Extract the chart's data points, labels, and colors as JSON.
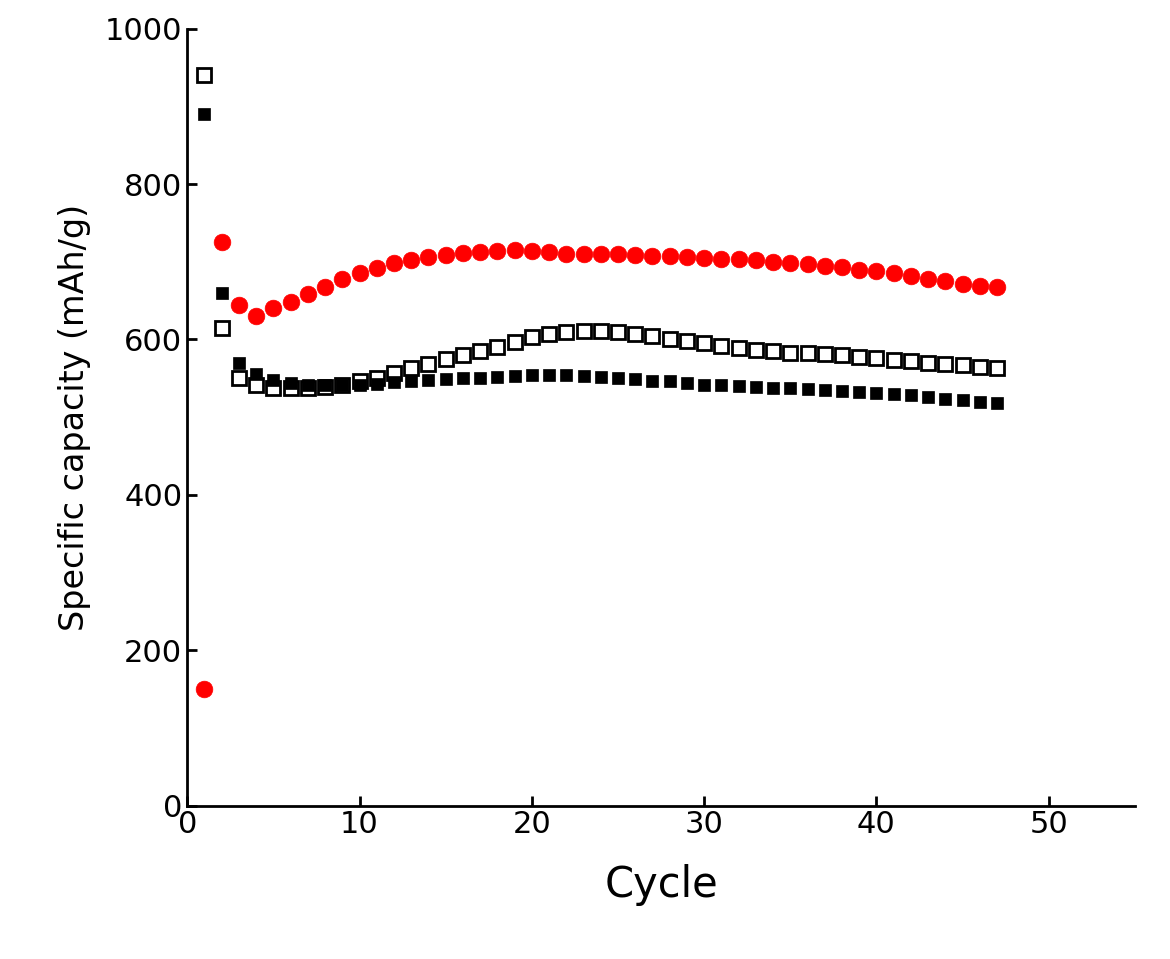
{
  "title": "",
  "xlabel": "Cycle",
  "ylabel": "Specific capacity (mAh/g)",
  "xlim": [
    0,
    55
  ],
  "ylim": [
    0,
    1000
  ],
  "xticks": [
    0,
    10,
    20,
    30,
    40,
    50
  ],
  "yticks": [
    0,
    200,
    400,
    600,
    800,
    1000
  ],
  "background_color": "#ffffff",
  "series": {
    "red_circles": {
      "x": [
        1,
        2,
        3,
        4,
        5,
        6,
        7,
        8,
        9,
        10,
        11,
        12,
        13,
        14,
        15,
        16,
        17,
        18,
        19,
        20,
        21,
        22,
        23,
        24,
        25,
        26,
        27,
        28,
        29,
        30,
        31,
        32,
        33,
        34,
        35,
        36,
        37,
        38,
        39,
        40,
        41,
        42,
        43,
        44,
        45,
        46,
        47
      ],
      "y": [
        150,
        725,
        645,
        630,
        640,
        648,
        658,
        668,
        678,
        686,
        692,
        698,
        702,
        706,
        709,
        711,
        713,
        714,
        715,
        714,
        712,
        710,
        710,
        710,
        710,
        709,
        708,
        707,
        706,
        705,
        704,
        703,
        702,
        700,
        699,
        697,
        695,
        693,
        690,
        688,
        685,
        682,
        678,
        675,
        672,
        669,
        667
      ],
      "color": "#ff0000",
      "marker": "o",
      "fillstyle": "full",
      "markersize": 12
    },
    "black_open_squares": {
      "x": [
        1,
        2,
        3,
        4,
        5,
        6,
        7,
        8,
        9,
        10,
        11,
        12,
        13,
        14,
        15,
        16,
        17,
        18,
        19,
        20,
        21,
        22,
        23,
        24,
        25,
        26,
        27,
        28,
        29,
        30,
        31,
        32,
        33,
        34,
        35,
        36,
        37,
        38,
        39,
        40,
        41,
        42,
        43,
        44,
        45,
        46,
        47
      ],
      "y": [
        940,
        615,
        550,
        542,
        538,
        537,
        537,
        539,
        542,
        546,
        551,
        557,
        563,
        569,
        575,
        580,
        585,
        590,
        597,
        603,
        607,
        610,
        611,
        611,
        609,
        607,
        604,
        601,
        598,
        595,
        592,
        589,
        587,
        585,
        583,
        582,
        581,
        580,
        578,
        576,
        574,
        572,
        570,
        568,
        567,
        565,
        563
      ],
      "color": "#000000",
      "marker": "s",
      "fillstyle": "none",
      "markersize": 10
    },
    "black_filled_squares": {
      "x": [
        1,
        2,
        3,
        4,
        5,
        6,
        7,
        8,
        9,
        10,
        11,
        12,
        13,
        14,
        15,
        16,
        17,
        18,
        19,
        20,
        21,
        22,
        23,
        24,
        25,
        26,
        27,
        28,
        29,
        30,
        31,
        32,
        33,
        34,
        35,
        36,
        37,
        38,
        39,
        40,
        41,
        42,
        43,
        44,
        45,
        46,
        47
      ],
      "y": [
        890,
        660,
        570,
        555,
        548,
        544,
        542,
        541,
        541,
        542,
        543,
        545,
        547,
        548,
        549,
        550,
        551,
        552,
        553,
        554,
        554,
        554,
        553,
        552,
        551,
        549,
        547,
        546,
        544,
        542,
        541,
        540,
        539,
        538,
        537,
        536,
        535,
        534,
        533,
        531,
        530,
        528,
        526,
        524,
        522,
        520,
        518
      ],
      "color": "#000000",
      "marker": "s",
      "fillstyle": "full",
      "markersize": 9
    }
  }
}
